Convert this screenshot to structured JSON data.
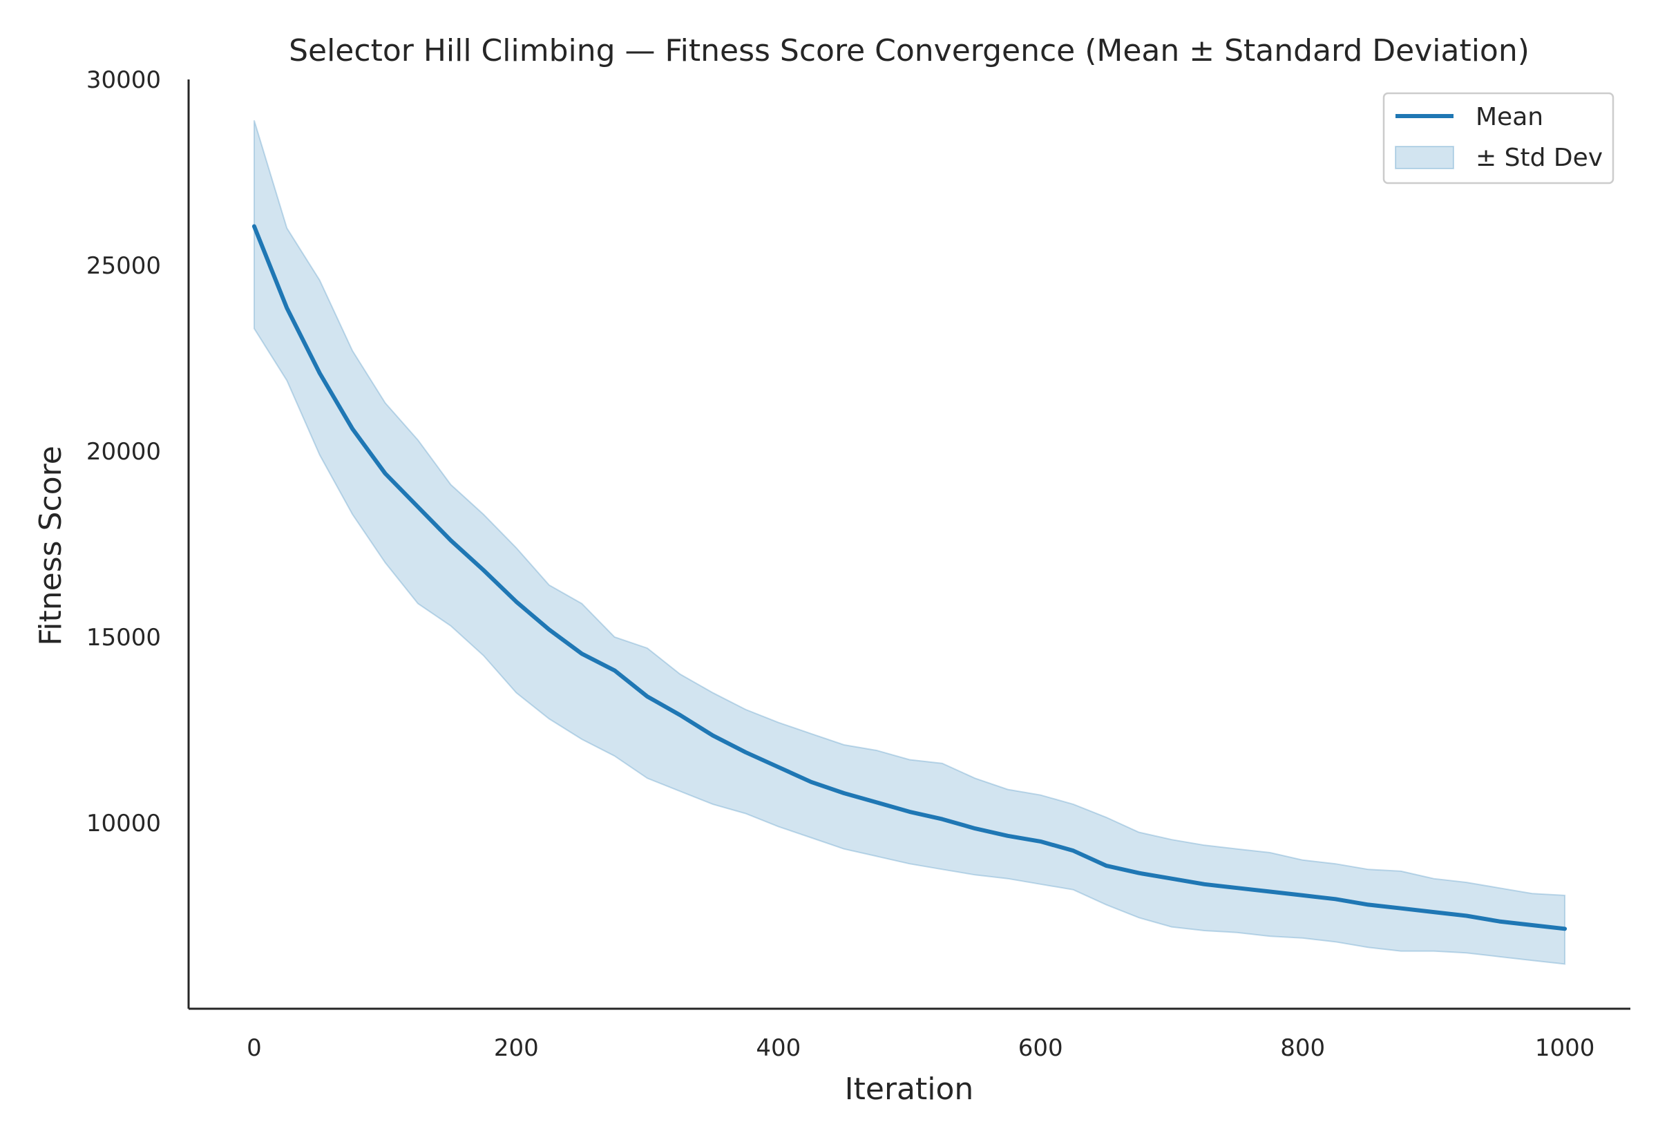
{
  "chart_data": {
    "type": "line",
    "title": "Selector Hill Climbing — Fitness Score Convergence (Mean ± Standard Deviation)",
    "xlabel": "Iteration",
    "ylabel": "Fitness Score",
    "xlim": [
      -50,
      1050
    ],
    "ylim": [
      5000,
      30000
    ],
    "xticks": [
      0,
      200,
      400,
      600,
      800,
      1000
    ],
    "xtick_labels": [
      "0",
      "200",
      "400",
      "600",
      "800",
      "1000"
    ],
    "yticks": [
      10000,
      15000,
      20000,
      25000,
      30000
    ],
    "ytick_labels": [
      "10000",
      "15000",
      "20000",
      "25000",
      "30000"
    ],
    "grid": false,
    "legend_position": "top-right",
    "colors": {
      "line": "#1f77b4",
      "band": "#1f77b4"
    },
    "series": [
      {
        "name": "Mean",
        "kind": "line",
        "x": [
          0,
          25,
          50,
          75,
          100,
          125,
          150,
          175,
          200,
          225,
          250,
          275,
          300,
          325,
          350,
          375,
          400,
          425,
          450,
          475,
          500,
          525,
          550,
          575,
          600,
          625,
          650,
          675,
          700,
          725,
          750,
          775,
          800,
          825,
          850,
          875,
          900,
          925,
          950,
          975,
          1000
        ],
        "y": [
          26050,
          23850,
          22100,
          20600,
          19400,
          18500,
          17600,
          16800,
          15950,
          15200,
          14550,
          14100,
          13400,
          12900,
          12350,
          11900,
          11500,
          11100,
          10800,
          10550,
          10300,
          10100,
          9850,
          9650,
          9500,
          9250,
          8850,
          8650,
          8500,
          8350,
          8250,
          8150,
          8050,
          7950,
          7800,
          7700,
          7600,
          7500,
          7350,
          7250,
          7150
        ]
      },
      {
        "name": "± Std Dev",
        "kind": "band",
        "x": [
          0,
          25,
          50,
          75,
          100,
          125,
          150,
          175,
          200,
          225,
          250,
          275,
          300,
          325,
          350,
          375,
          400,
          425,
          450,
          475,
          500,
          525,
          550,
          575,
          600,
          625,
          650,
          675,
          700,
          725,
          750,
          775,
          800,
          825,
          850,
          875,
          900,
          925,
          950,
          975,
          1000
        ],
        "upper": [
          28900,
          26000,
          24600,
          22700,
          21300,
          20300,
          19100,
          18300,
          17400,
          16400,
          15900,
          15000,
          14700,
          14000,
          13500,
          13050,
          12700,
          12400,
          12100,
          11950,
          11700,
          11600,
          11200,
          10900,
          10750,
          10500,
          10150,
          9750,
          9550,
          9400,
          9300,
          9200,
          9000,
          8900,
          8750,
          8700,
          8500,
          8400,
          8250,
          8100,
          8050
        ],
        "lower": [
          23300,
          21900,
          19900,
          18300,
          17000,
          15900,
          15300,
          14500,
          13500,
          12800,
          12250,
          11800,
          11200,
          10850,
          10500,
          10250,
          9900,
          9600,
          9300,
          9100,
          8900,
          8750,
          8600,
          8500,
          8350,
          8200,
          7800,
          7450,
          7200,
          7100,
          7050,
          6950,
          6900,
          6800,
          6650,
          6550,
          6550,
          6500,
          6400,
          6300,
          6200
        ]
      }
    ]
  }
}
